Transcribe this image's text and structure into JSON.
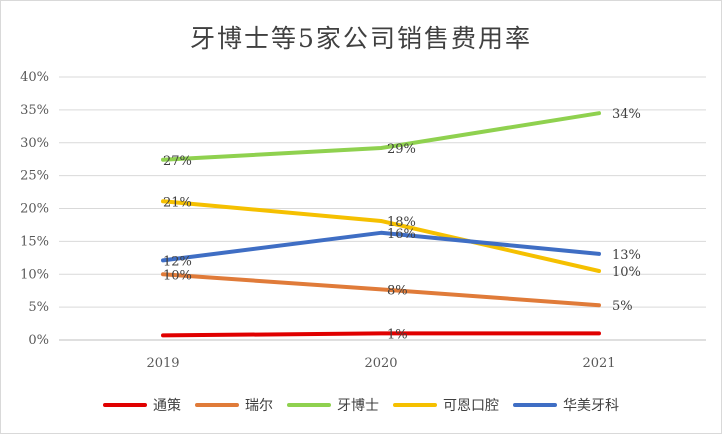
{
  "chart_data": {
    "type": "line",
    "title": "牙博士等5家公司销售费用率",
    "xlabel": "",
    "ylabel": "",
    "categories": [
      "2019",
      "2020",
      "2021"
    ],
    "ylim": [
      0,
      40
    ],
    "yticks": [
      "0%",
      "5%",
      "10%",
      "15%",
      "20%",
      "25%",
      "30%",
      "35%",
      "40%"
    ],
    "grid": true,
    "legend_position": "bottom",
    "series": [
      {
        "name": "通策",
        "color": "#e00000",
        "values": [
          0.7,
          1.0,
          1.0
        ],
        "labels": [
          "",
          "1%",
          ""
        ]
      },
      {
        "name": "瑞尔",
        "color": "#e07b39",
        "values": [
          10.0,
          7.7,
          5.3
        ],
        "labels": [
          "10%",
          "8%",
          "5%"
        ]
      },
      {
        "name": "牙博士",
        "color": "#8fd14f",
        "values": [
          27.4,
          29.2,
          34.5
        ],
        "labels": [
          "27%",
          "29%",
          "34%"
        ]
      },
      {
        "name": "可恩口腔",
        "color": "#f5c000",
        "values": [
          21.1,
          18.1,
          10.5
        ],
        "labels": [
          "21%",
          "18%",
          "10%"
        ]
      },
      {
        "name": "华美牙科",
        "color": "#3f6ec4",
        "values": [
          12.1,
          16.3,
          13.1
        ],
        "labels": [
          "12%",
          "16%",
          "13%"
        ]
      }
    ]
  }
}
